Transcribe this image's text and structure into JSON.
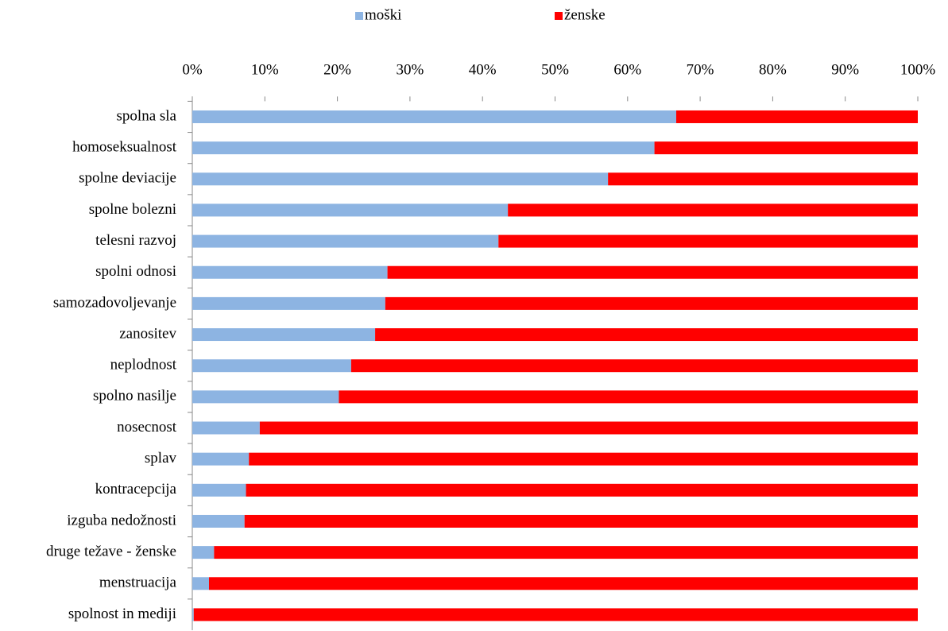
{
  "chart_data": {
    "type": "bar",
    "orientation": "horizontal",
    "stacked": true,
    "categories": [
      "spolna sla",
      "homoseksualnost",
      "spolne deviacije",
      "spolne bolezni",
      "telesni razvoj",
      "spolni odnosi",
      "samozadovoljevanje",
      "zanositev",
      "neplodnost",
      "spolno nasilje",
      "nosecnost",
      "splav",
      "kontracepcija",
      "izguba nedožnosti",
      "druge težave - ženske",
      "menstruacija",
      "spolnost in mediji"
    ],
    "series": [
      {
        "name": "moški",
        "color": "#8db4e2",
        "values": [
          66.7,
          63.7,
          57.3,
          43.5,
          42.2,
          26.9,
          26.6,
          25.2,
          21.9,
          20.2,
          9.3,
          7.8,
          7.4,
          7.2,
          3.0,
          2.3,
          0.2
        ]
      },
      {
        "name": "ženske",
        "color": "#ff0000",
        "values": [
          33.3,
          36.3,
          42.7,
          56.5,
          57.8,
          73.1,
          73.4,
          74.8,
          78.1,
          79.8,
          90.7,
          92.2,
          92.6,
          92.8,
          97.0,
          97.7,
          99.8
        ]
      }
    ],
    "xlim": [
      0,
      100
    ],
    "xticks": [
      {
        "value": 0,
        "label": "0%"
      },
      {
        "value": 10,
        "label": "10%"
      },
      {
        "value": 20,
        "label": "20%"
      },
      {
        "value": 30,
        "label": "30%"
      },
      {
        "value": 40,
        "label": "40%"
      },
      {
        "value": 50,
        "label": "50%"
      },
      {
        "value": 60,
        "label": "60%"
      },
      {
        "value": 70,
        "label": "70%"
      },
      {
        "value": 80,
        "label": "80%"
      },
      {
        "value": 90,
        "label": "90%"
      },
      {
        "value": 100,
        "label": "100%"
      }
    ],
    "legend": "top"
  }
}
